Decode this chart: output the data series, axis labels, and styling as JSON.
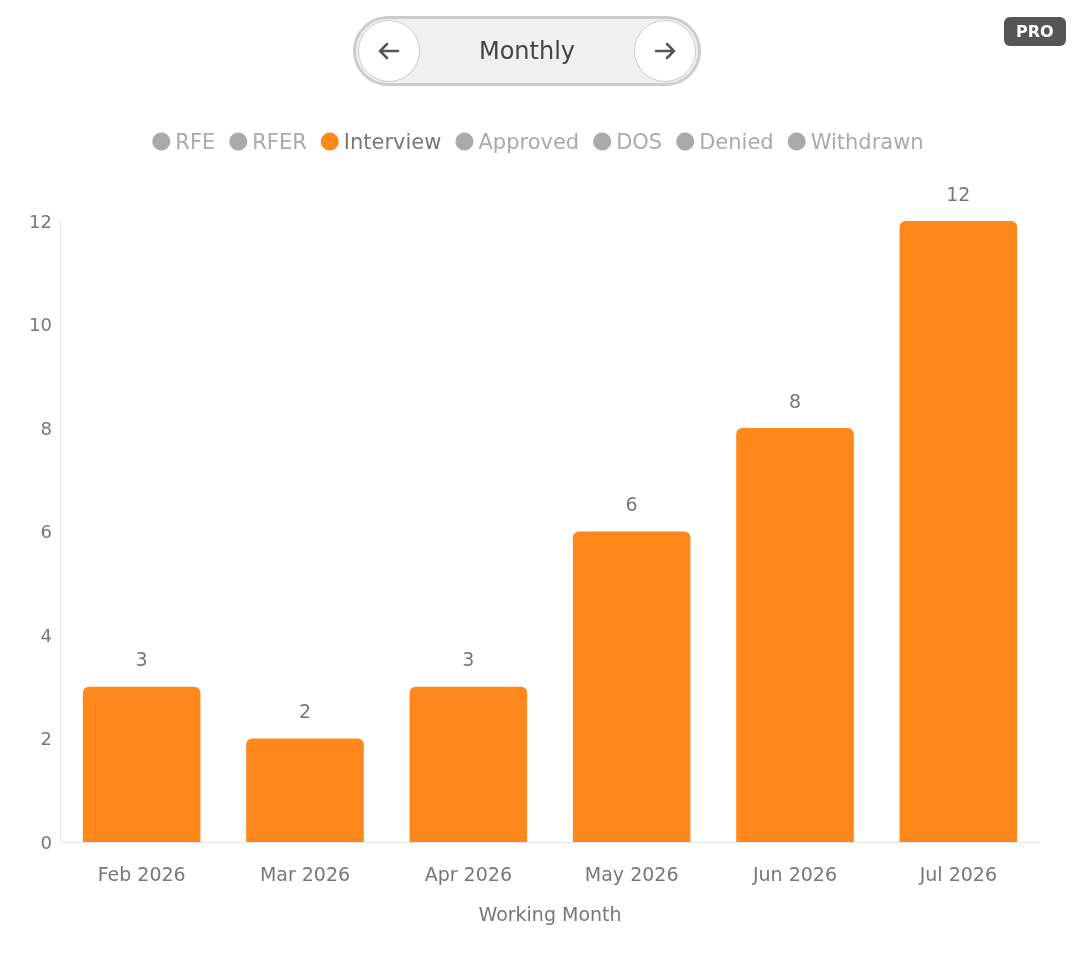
{
  "chart_data": {
    "type": "bar",
    "xlabel": "Working Month",
    "annotations": [
      "Monthly",
      "PRO"
    ],
    "categories": [
      "Feb 2026",
      "Mar 2026",
      "Apr 2026",
      "May 2026",
      "Jun 2026",
      "Jul 2026"
    ],
    "series": [
      {
        "name": "RFE",
        "color": "#aaaaaa",
        "values": [
          null,
          null,
          null,
          null,
          null,
          null
        ]
      },
      {
        "name": "RFER",
        "color": "#aaaaaa",
        "values": [
          null,
          null,
          null,
          null,
          null,
          null
        ]
      },
      {
        "name": "Interview",
        "color": "#ff881c",
        "values": [
          3,
          2,
          3,
          6,
          8,
          12
        ]
      },
      {
        "name": "Approved",
        "color": "#aaaaaa",
        "values": [
          null,
          null,
          null,
          null,
          null,
          null
        ]
      },
      {
        "name": "DOS",
        "color": "#aaaaaa",
        "values": [
          null,
          null,
          null,
          null,
          null,
          null
        ]
      },
      {
        "name": "Denied",
        "color": "#aaaaaa",
        "values": [
          null,
          null,
          null,
          null,
          null,
          null
        ]
      },
      {
        "name": "Withdrawn",
        "color": "#aaaaaa",
        "values": [
          null,
          null,
          null,
          null,
          null,
          null
        ]
      }
    ],
    "ylim": [
      0,
      12
    ],
    "yticks": [
      0,
      2,
      4,
      6,
      8,
      10,
      12
    ],
    "data_labels": true,
    "grid": false,
    "legend": "top"
  }
}
